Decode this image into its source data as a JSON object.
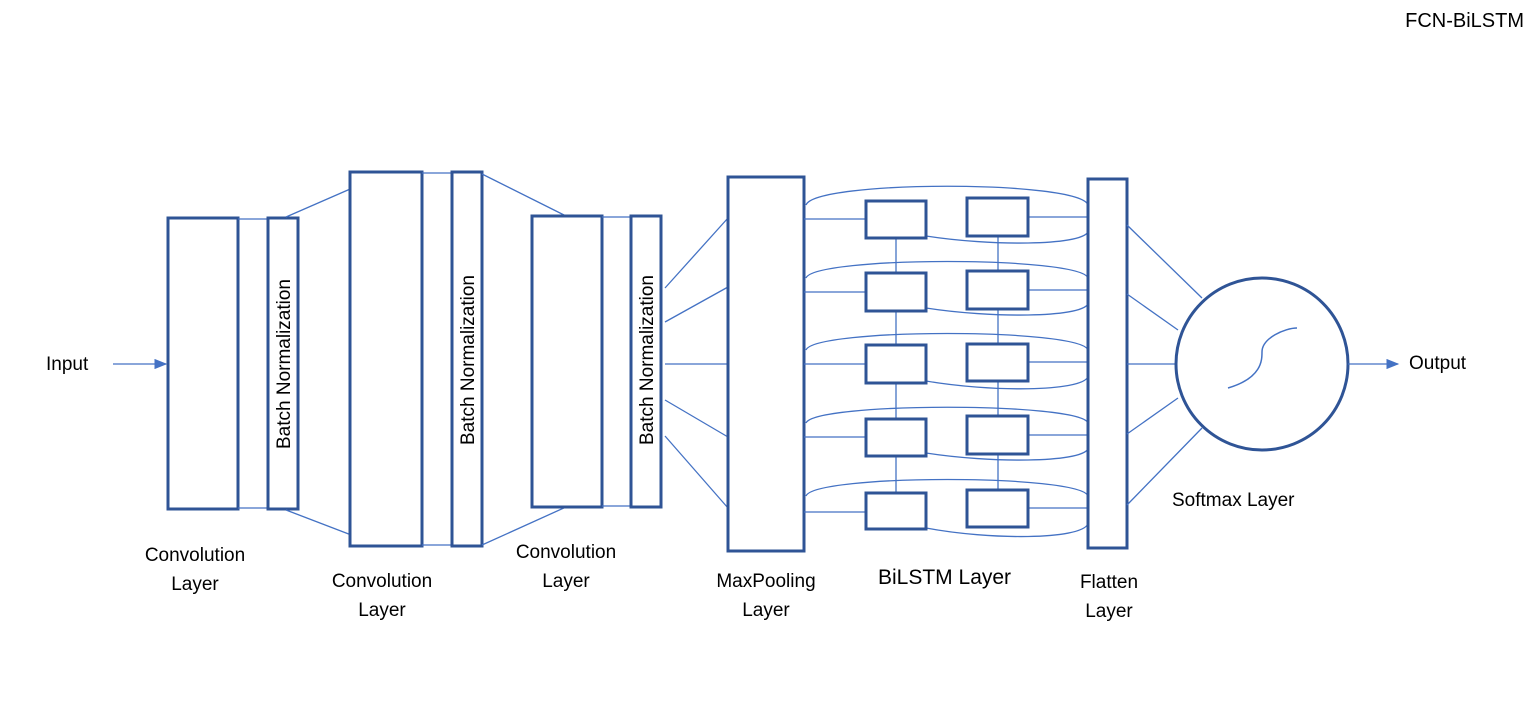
{
  "title": "FCN-BiLSTM",
  "input_label": "Input",
  "output_label": "Output",
  "batch_norm_label": "Batch Normalization",
  "layers": {
    "conv1": [
      "Convolution",
      "Layer"
    ],
    "conv2": [
      "Convolution",
      "Layer"
    ],
    "conv3": [
      "Convolution",
      "Layer"
    ],
    "maxpool": [
      "MaxPooling",
      "Layer"
    ],
    "bilstm": "BiLSTM Layer",
    "flatten": [
      "Flatten",
      "Layer"
    ],
    "softmax": "Softmax Layer"
  },
  "colors": {
    "box_stroke": "#2f5496",
    "line_stroke": "#4472c4"
  }
}
